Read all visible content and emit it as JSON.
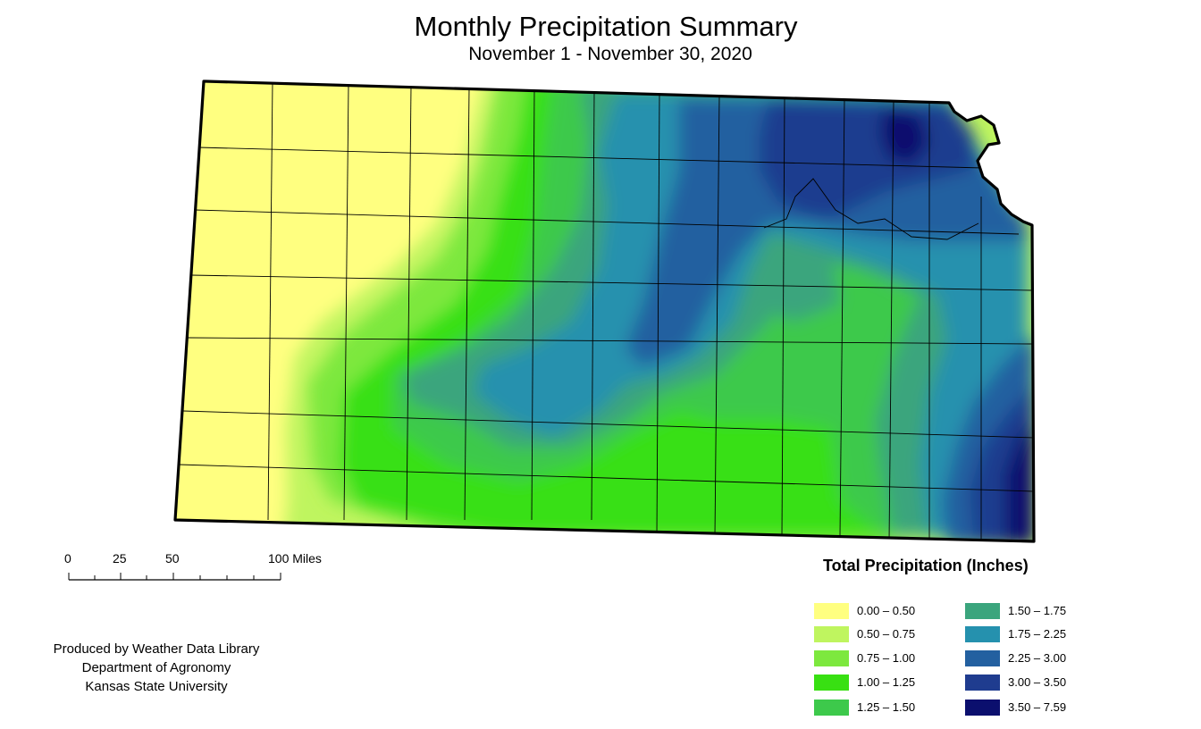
{
  "title": "Monthly Precipitation Summary",
  "subtitle": "November 1 - November 30, 2020",
  "scale_bar": {
    "labels": [
      "0",
      "25",
      "50",
      "100 Miles"
    ]
  },
  "credits": {
    "line1": "Produced by Weather Data Library",
    "line2": "Department of Agronomy",
    "line3": "Kansas State University"
  },
  "legend": {
    "title": "Total Precipitation (Inches)",
    "classes": [
      {
        "label": "0.00 – 0.50",
        "color": "#ffff80"
      },
      {
        "label": "0.50 – 0.75",
        "color": "#bff55f"
      },
      {
        "label": "0.75 – 1.00",
        "color": "#7de83e"
      },
      {
        "label": "1.00 – 1.25",
        "color": "#38e012"
      },
      {
        "label": "1.25 – 1.50",
        "color": "#3dc94b"
      },
      {
        "label": "1.50 – 1.75",
        "color": "#3ba57d"
      },
      {
        "label": "1.75 – 2.25",
        "color": "#2591ae"
      },
      {
        "label": "2.25 – 3.00",
        "color": "#2360a0"
      },
      {
        "label": "3.00 – 3.50",
        "color": "#1f3c8f"
      },
      {
        "label": "3.50 – 7.59",
        "color": "#0b0f6e"
      }
    ]
  }
}
